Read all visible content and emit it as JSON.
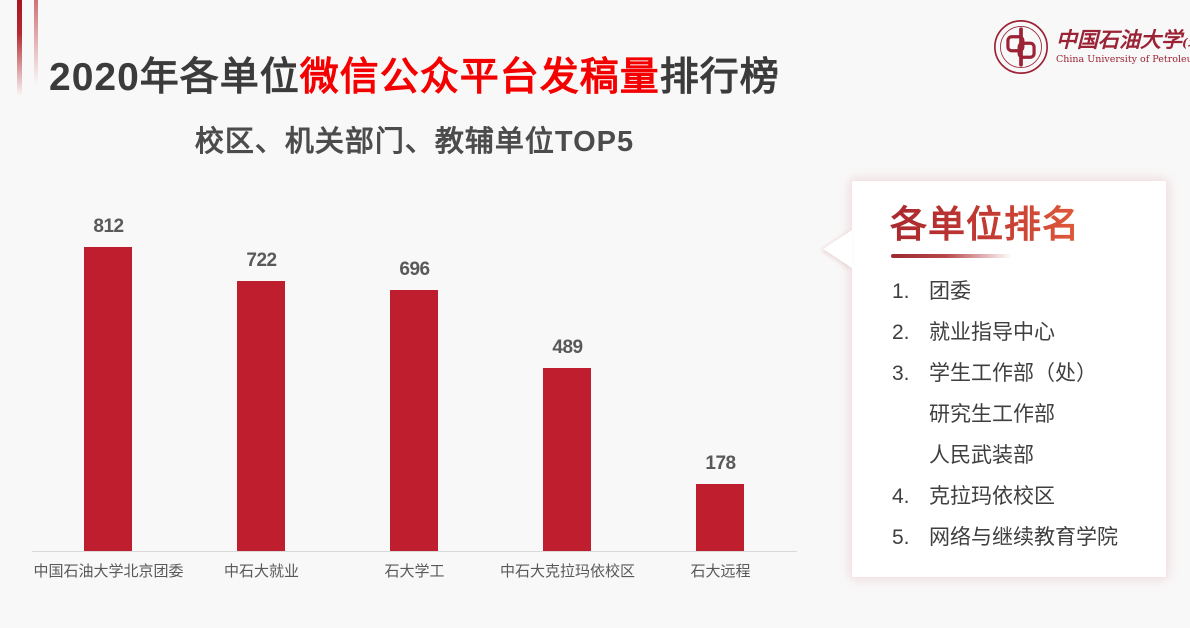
{
  "header": {
    "title_parts": [
      {
        "text": "2020年各单位",
        "emphasis": false
      },
      {
        "text": "微信公众平台发稿量",
        "emphasis": true
      },
      {
        "text": "排行榜",
        "emphasis": false
      }
    ]
  },
  "logo": {
    "cn": "中国石油大学",
    "cn_suffix": "(北京)",
    "en": "China University of Petroleum-Beijing"
  },
  "chart_data": {
    "type": "bar",
    "title": "校区、机关部门、教辅单位TOP5",
    "categories": [
      "中国石油大学北京团委",
      "中石大就业",
      "石大学工",
      "中石大克拉玛依校区",
      "石大远程"
    ],
    "values": [
      812,
      722,
      696,
      489,
      178
    ],
    "value_labels": true,
    "bar_color": "#be1e2d",
    "value_label_color": "#595959",
    "xlabel": "",
    "ylabel": "",
    "ylim": [
      0,
      812
    ],
    "grid": false,
    "legend": false
  },
  "panel": {
    "title": "各单位排名",
    "items": [
      {
        "rank": "1.",
        "lines": [
          "团委"
        ]
      },
      {
        "rank": "2.",
        "lines": [
          "就业指导中心"
        ]
      },
      {
        "rank": "3.",
        "lines": [
          "学生工作部（处）",
          "研究生工作部",
          "人民武装部"
        ]
      },
      {
        "rank": "4.",
        "lines": [
          "克拉玛依校区"
        ]
      },
      {
        "rank": "5.",
        "lines": [
          "网络与继续教育学院"
        ]
      }
    ]
  },
  "colors": {
    "accent_red": "#be1e2d",
    "title_red": "#f40000",
    "logo_red": "#9b2335",
    "panel_gradient_start": "#a9292f",
    "panel_gradient_end": "#e05b3b"
  }
}
